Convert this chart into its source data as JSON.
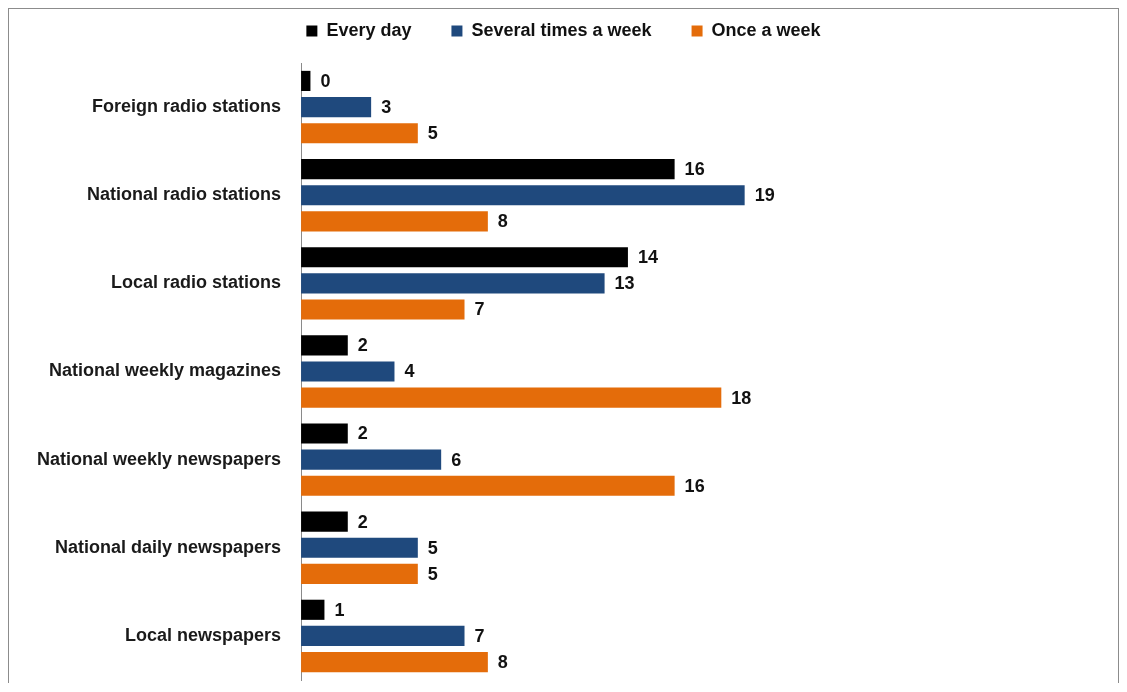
{
  "chart_data": {
    "type": "bar",
    "orientation": "horizontal",
    "categories": [
      "Foreign radio stations",
      "National radio stations",
      "Local radio stations",
      "National weekly magazines",
      "National weekly newspapers",
      "National daily newspapers",
      "Local newspapers"
    ],
    "series": [
      {
        "name": "Every day",
        "color": "#000000",
        "values": [
          0.4,
          16,
          14,
          2,
          2,
          2,
          1
        ],
        "value_labels": [
          "0",
          "16",
          "14",
          "2",
          "2",
          "2",
          "1"
        ]
      },
      {
        "name": "Several times a week",
        "color": "#1f497d",
        "values": [
          3,
          19,
          13,
          4,
          6,
          5,
          7
        ],
        "value_labels": [
          "3",
          "19",
          "13",
          "4",
          "6",
          "5",
          "7"
        ]
      },
      {
        "name": "Once a week",
        "color": "#e46c0a",
        "values": [
          5,
          8,
          7,
          18,
          16,
          5,
          8
        ],
        "value_labels": [
          "5",
          "8",
          "7",
          "18",
          "16",
          "5",
          "8"
        ]
      }
    ],
    "legend": "top",
    "grid": false,
    "tick_labels": "y"
  }
}
